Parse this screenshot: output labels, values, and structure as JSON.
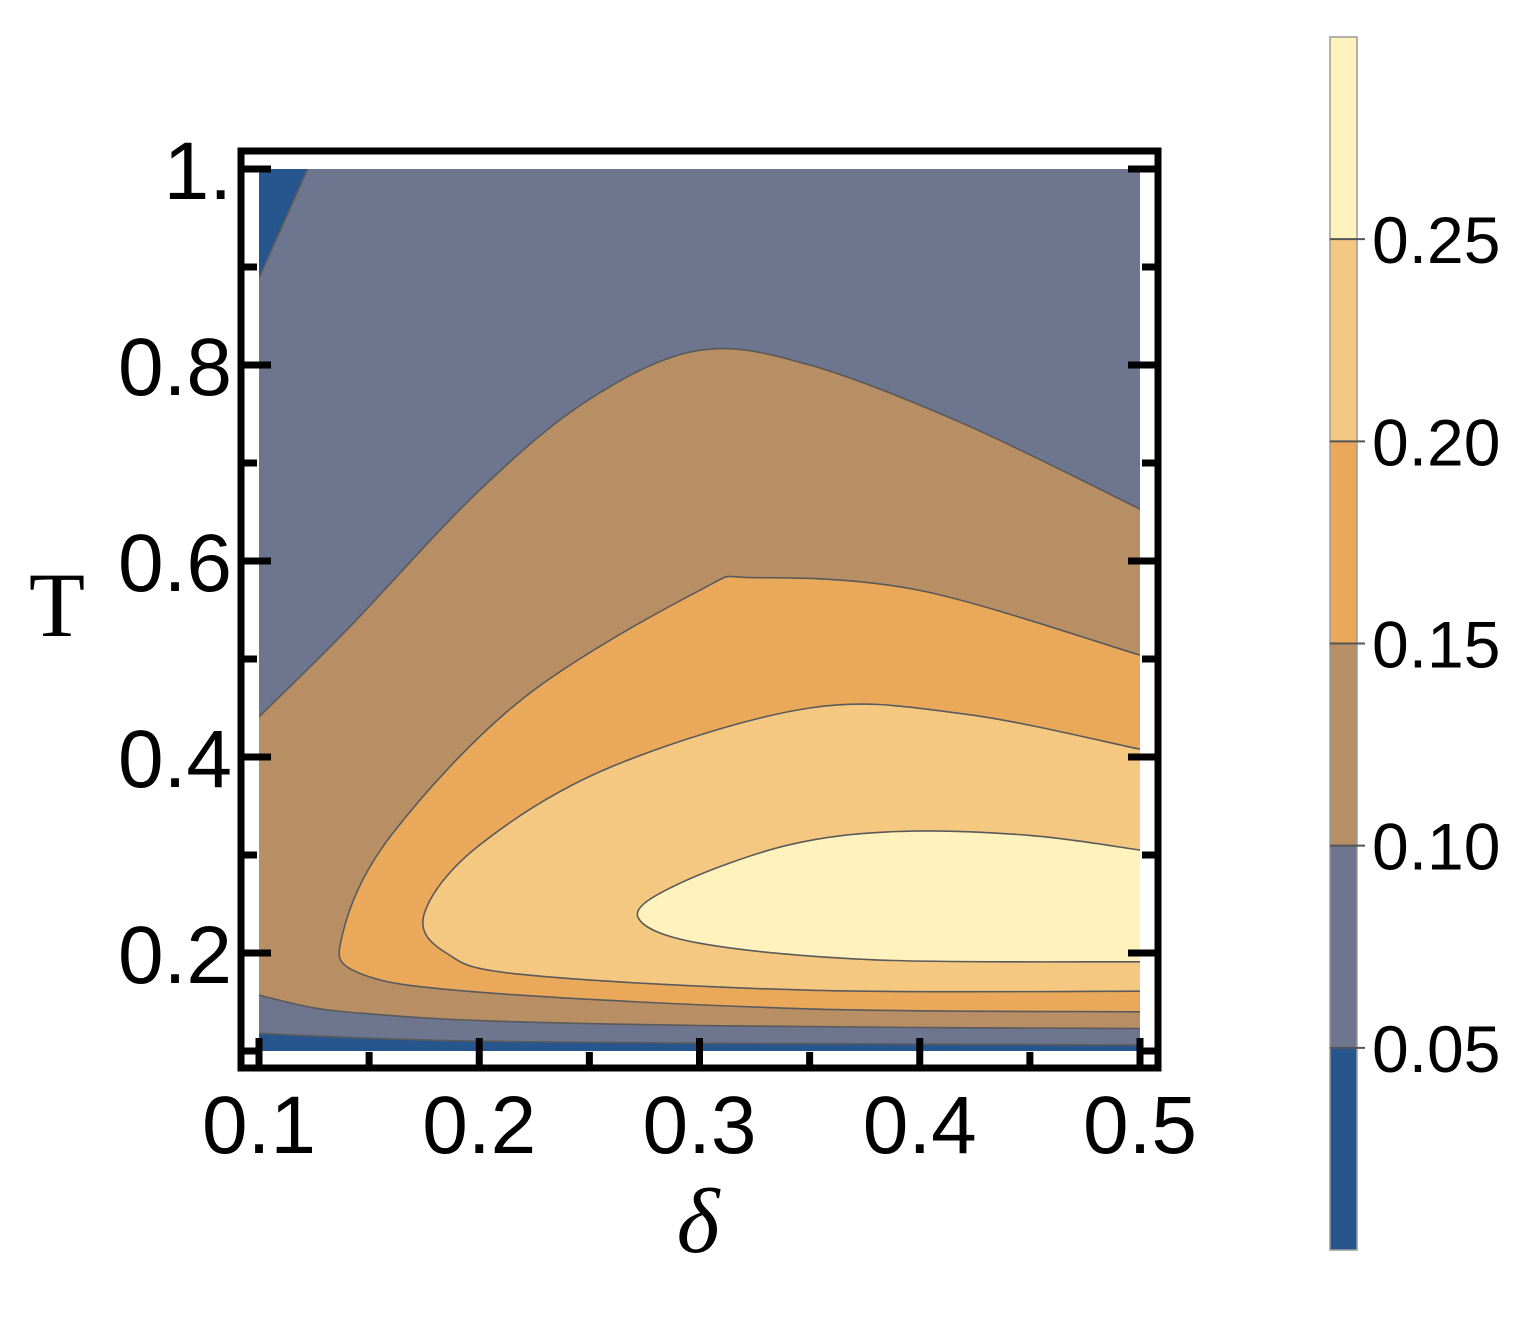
{
  "chart_data": {
    "type": "contour",
    "xlabel": "δ",
    "ylabel": "T",
    "xlim": [
      0.1,
      0.5
    ],
    "ylim": [
      0.1,
      1.0
    ],
    "x_ticks": [
      "0.1",
      "0.2",
      "0.3",
      "0.4",
      "0.5"
    ],
    "y_ticks": [
      "0.2",
      "0.4",
      "0.6",
      "0.8",
      "1."
    ],
    "levels": [
      0.05,
      0.1,
      0.15,
      0.2,
      0.25
    ],
    "colorbar": {
      "range": [
        0.0,
        0.3
      ],
      "tick_labels": [
        "0.05",
        "0.10",
        "0.15",
        "0.20",
        "0.25"
      ]
    },
    "bands": [
      {
        "range": "<0.05",
        "color": "#27568f"
      },
      {
        "range": "0.05-0.10",
        "color": "#6d758f"
      },
      {
        "range": "0.10-0.15",
        "color": "#b88e64"
      },
      {
        "range": "0.15-0.20",
        "color": "#eaa95a"
      },
      {
        "range": "0.20-0.25",
        "color": "#f5c882"
      },
      {
        "range": ">0.25",
        "color": "#fff2bd"
      }
    ],
    "contours": [
      {
        "level": 0.05,
        "points": [
          [
            0.1,
            0.889
          ],
          [
            0.122,
            1.0
          ]
        ]
      },
      {
        "level": 0.05,
        "points": [
          [
            0.1,
            0.118
          ],
          [
            0.15,
            0.113
          ],
          [
            0.2,
            0.11
          ],
          [
            0.3,
            0.108
          ],
          [
            0.4,
            0.107
          ],
          [
            0.5,
            0.106
          ]
        ]
      },
      {
        "level": 0.1,
        "points": [
          [
            0.1,
            0.157
          ],
          [
            0.125,
            0.144
          ],
          [
            0.15,
            0.138
          ],
          [
            0.2,
            0.131
          ],
          [
            0.3,
            0.126
          ],
          [
            0.4,
            0.124
          ],
          [
            0.5,
            0.123
          ]
        ]
      },
      {
        "level": 0.1,
        "points": [
          [
            0.1,
            0.441
          ],
          [
            0.14,
            0.53
          ],
          [
            0.2,
            0.672
          ],
          [
            0.25,
            0.765
          ],
          [
            0.3,
            0.815
          ],
          [
            0.35,
            0.8
          ],
          [
            0.42,
            0.74
          ],
          [
            0.5,
            0.653
          ]
        ]
      },
      {
        "level": 0.15,
        "points": [
          [
            0.5,
            0.14
          ],
          [
            0.35,
            0.143
          ],
          [
            0.2,
            0.16
          ],
          [
            0.145,
            0.18
          ],
          [
            0.138,
            0.22
          ],
          [
            0.16,
            0.32
          ],
          [
            0.22,
            0.46
          ],
          [
            0.3,
            0.57
          ],
          [
            0.325,
            0.583
          ],
          [
            0.4,
            0.57
          ],
          [
            0.5,
            0.504
          ]
        ]
      },
      {
        "level": 0.2,
        "points": [
          [
            0.5,
            0.161
          ],
          [
            0.35,
            0.162
          ],
          [
            0.22,
            0.178
          ],
          [
            0.185,
            0.2
          ],
          [
            0.175,
            0.24
          ],
          [
            0.2,
            0.31
          ],
          [
            0.26,
            0.39
          ],
          [
            0.35,
            0.45
          ],
          [
            0.42,
            0.444
          ],
          [
            0.5,
            0.408
          ]
        ]
      },
      {
        "level": 0.25,
        "points": [
          [
            0.5,
            0.191
          ],
          [
            0.38,
            0.193
          ],
          [
            0.3,
            0.21
          ],
          [
            0.272,
            0.237
          ],
          [
            0.29,
            0.27
          ],
          [
            0.34,
            0.31
          ],
          [
            0.39,
            0.324
          ],
          [
            0.45,
            0.32
          ],
          [
            0.5,
            0.305
          ]
        ]
      }
    ]
  }
}
